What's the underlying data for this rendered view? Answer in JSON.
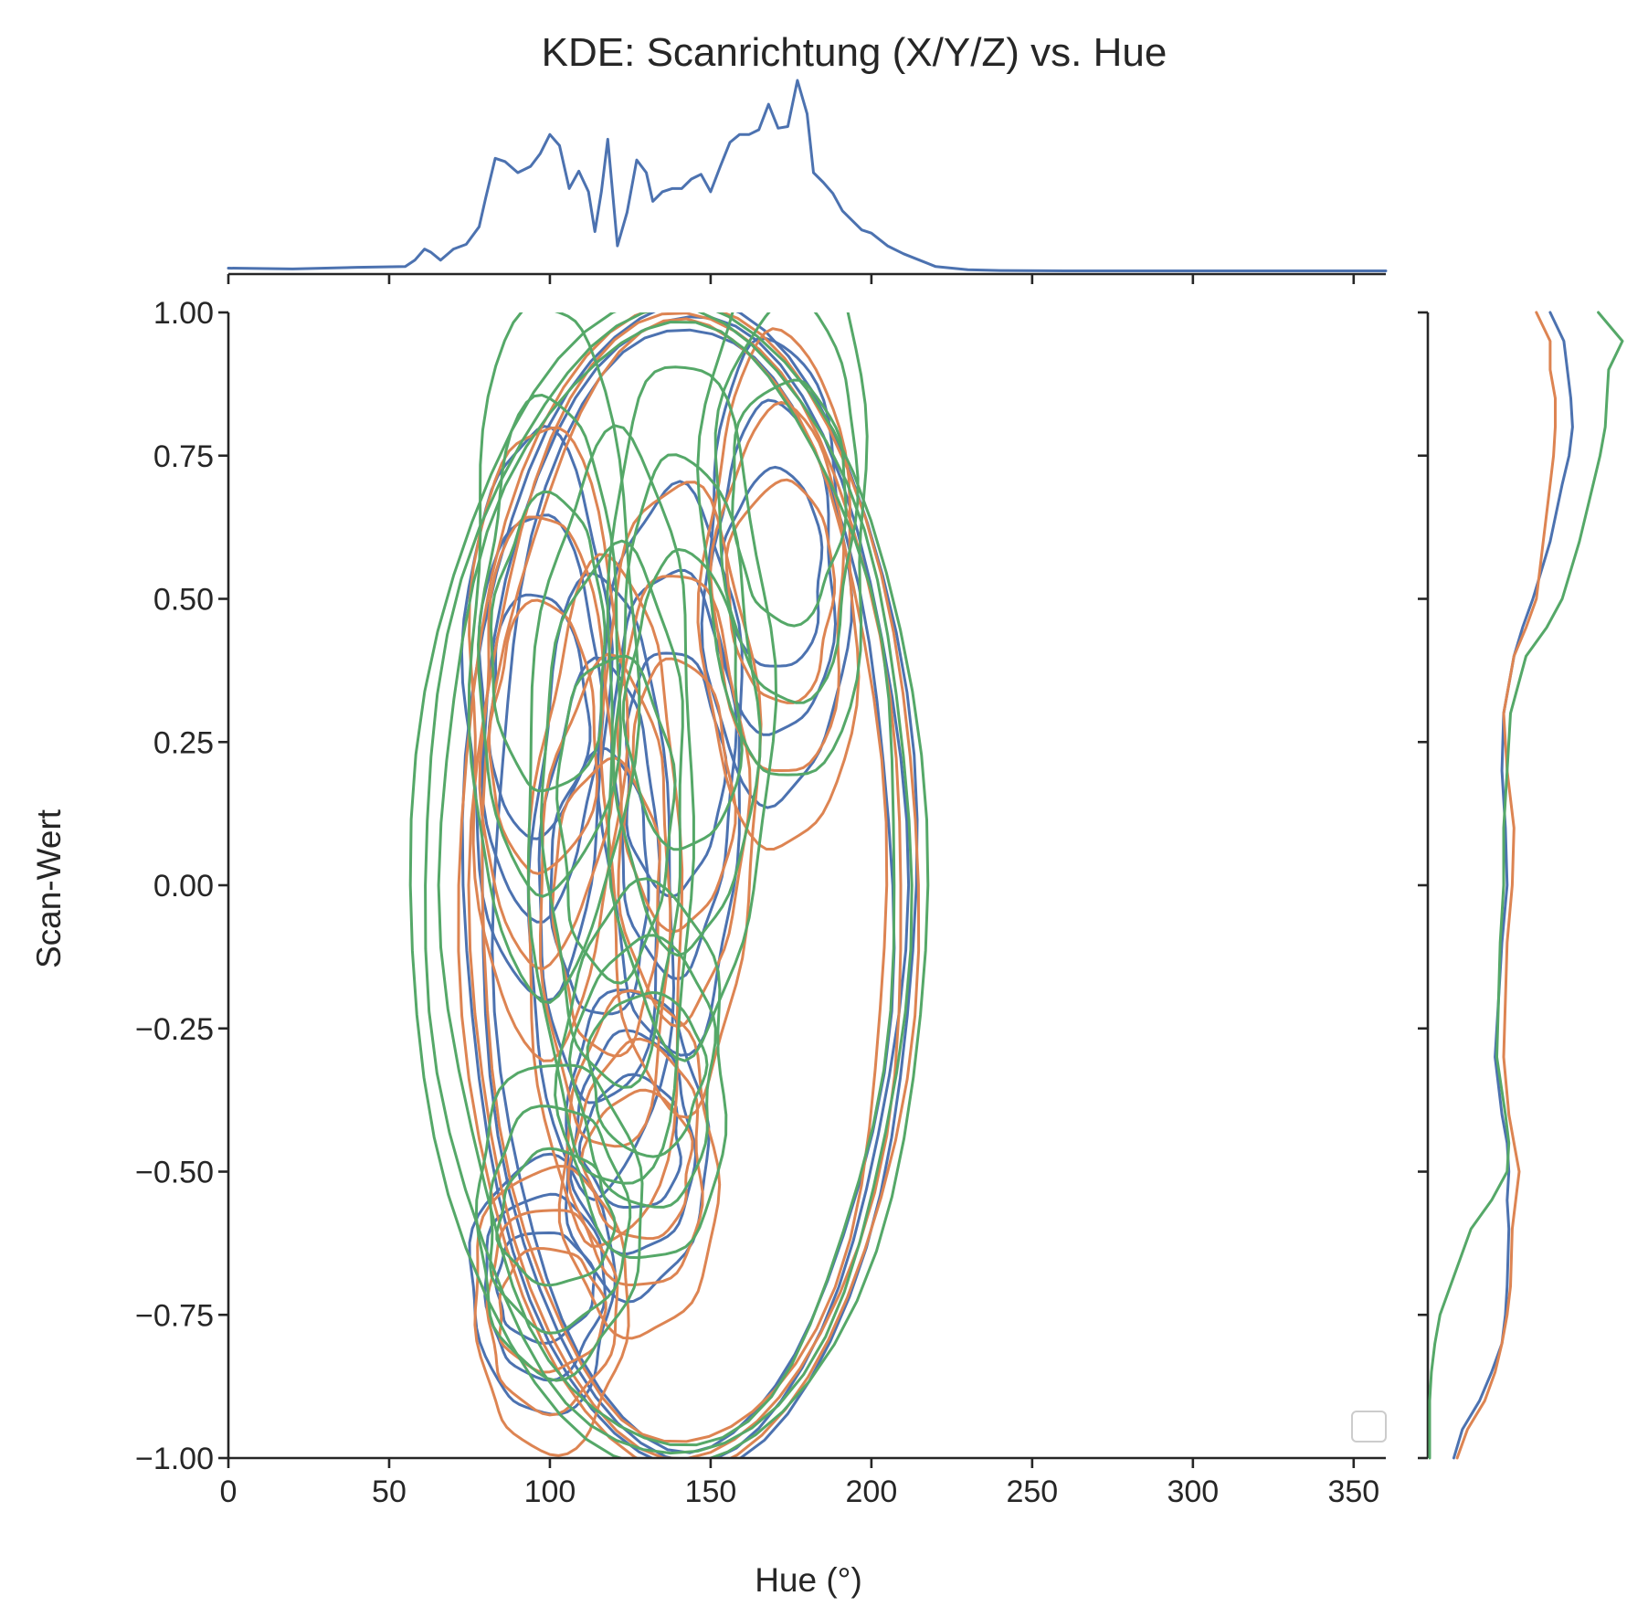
{
  "chart_data": {
    "type": "kde_joint",
    "title": "KDE: Scanrichtung (X/Y/Z) vs. Hue",
    "xlabel": "Hue (°)",
    "ylabel": "Scan-Wert",
    "xlim": [
      0,
      360
    ],
    "ylim": [
      -1.0,
      1.0
    ],
    "x_ticks": [
      0,
      50,
      100,
      150,
      200,
      250,
      300,
      350
    ],
    "x_tick_labels": [
      "0",
      "50",
      "100",
      "150",
      "200",
      "250",
      "300",
      "350"
    ],
    "y_ticks": [
      1.0,
      0.75,
      0.5,
      0.25,
      0.0,
      -0.25,
      -0.5,
      -0.75,
      -1.0
    ],
    "y_tick_labels": [
      "1.00",
      "0.75",
      "0.50",
      "0.25",
      "0.00",
      "−0.25",
      "−0.50",
      "−0.75",
      "−1.00"
    ],
    "legend_position": "lower right",
    "legend_entries": [],
    "colors": {
      "blue": "#4c72b0",
      "orange": "#dd8452",
      "green": "#55a868",
      "axis": "#262626"
    },
    "marginal_x": {
      "color": "#4c72b0",
      "x": [
        0,
        20,
        40,
        55,
        58,
        61,
        63,
        66,
        70,
        74,
        78,
        80,
        83,
        86,
        90,
        94,
        97,
        100,
        103,
        106,
        109,
        112,
        114,
        116,
        118,
        121,
        124,
        127,
        130,
        132,
        135,
        138,
        141,
        144,
        147,
        150,
        153,
        156,
        159,
        162,
        165,
        168,
        171,
        174,
        177,
        180,
        182,
        185,
        188,
        191,
        194,
        197,
        200,
        205,
        210,
        215,
        220,
        230,
        240,
        260,
        300,
        360
      ],
      "density": [
        0.02,
        0.015,
        0.025,
        0.03,
        0.07,
        0.14,
        0.12,
        0.07,
        0.14,
        0.17,
        0.28,
        0.46,
        0.71,
        0.69,
        0.62,
        0.66,
        0.74,
        0.86,
        0.79,
        0.52,
        0.63,
        0.5,
        0.25,
        0.5,
        0.83,
        0.16,
        0.37,
        0.7,
        0.62,
        0.44,
        0.5,
        0.52,
        0.52,
        0.58,
        0.61,
        0.5,
        0.66,
        0.81,
        0.86,
        0.86,
        0.89,
        1.05,
        0.9,
        0.91,
        1.2,
        0.99,
        0.62,
        0.56,
        0.49,
        0.38,
        0.32,
        0.26,
        0.24,
        0.16,
        0.11,
        0.07,
        0.03,
        0.01,
        0.005,
        0.003,
        0.003,
        0.003
      ]
    },
    "marginal_y": {
      "y": [
        1.0,
        0.95,
        0.9,
        0.85,
        0.8,
        0.75,
        0.7,
        0.6,
        0.5,
        0.45,
        0.4,
        0.3,
        0.2,
        0.1,
        0.0,
        -0.1,
        -0.2,
        -0.3,
        -0.4,
        -0.45,
        -0.5,
        -0.55,
        -0.6,
        -0.7,
        -0.75,
        -0.8,
        -0.85,
        -0.9,
        -0.95,
        -1.0
      ],
      "series": [
        {
          "color": "#4c72b0",
          "density": [
            0.7,
            0.78,
            0.8,
            0.82,
            0.83,
            0.81,
            0.77,
            0.7,
            0.6,
            0.54,
            0.49,
            0.43,
            0.42,
            0.44,
            0.45,
            0.42,
            0.4,
            0.38,
            0.42,
            0.45,
            0.46,
            0.45,
            0.46,
            0.45,
            0.44,
            0.42,
            0.36,
            0.29,
            0.19,
            0.14
          ]
        },
        {
          "color": "#dd8452",
          "density": [
            0.62,
            0.7,
            0.7,
            0.73,
            0.73,
            0.72,
            0.7,
            0.66,
            0.62,
            0.56,
            0.49,
            0.43,
            0.45,
            0.49,
            0.48,
            0.45,
            0.44,
            0.43,
            0.46,
            0.49,
            0.52,
            0.5,
            0.48,
            0.47,
            0.45,
            0.42,
            0.38,
            0.32,
            0.22,
            0.16
          ]
        },
        {
          "color": "#55a868",
          "density": [
            0.98,
            1.12,
            1.04,
            1.03,
            1.02,
            0.99,
            0.95,
            0.87,
            0.77,
            0.68,
            0.56,
            0.47,
            0.45,
            0.43,
            0.43,
            0.41,
            0.4,
            0.39,
            0.44,
            0.46,
            0.45,
            0.36,
            0.24,
            0.12,
            0.06,
            0.03,
            0.01,
            0.0,
            0.0,
            0.0
          ]
        }
      ]
    },
    "contours": [
      {
        "color": "#4c72b0",
        "hue_range": [
          73,
          214
        ],
        "level_count": 9
      },
      {
        "color": "#dd8452",
        "hue_range": [
          71,
          214
        ],
        "level_count": 9
      },
      {
        "color": "#55a868",
        "hue_range": [
          57,
          218
        ],
        "level_count": 9
      }
    ]
  }
}
